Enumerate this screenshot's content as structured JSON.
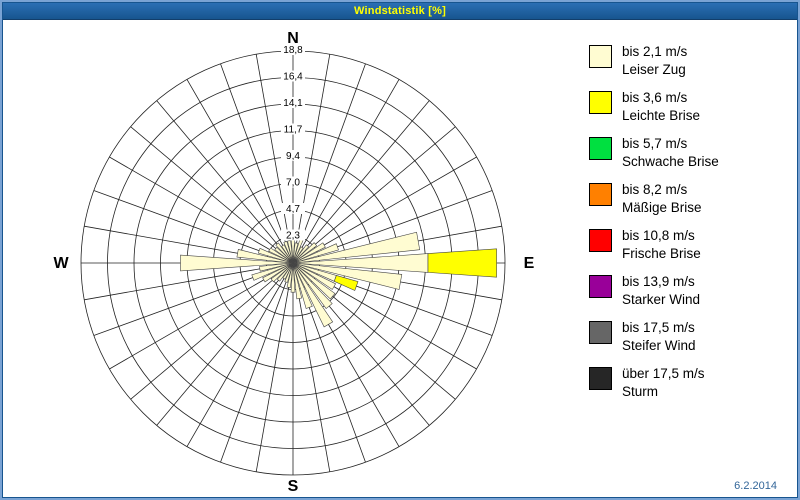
{
  "window": {
    "title": "Windstatistik [%]"
  },
  "footer": {
    "date": "6.2.2014"
  },
  "chart_data": {
    "type": "bar",
    "polar": true,
    "title": "Windstatistik [%]",
    "units": "%",
    "max_value": 18.8,
    "ring_labels": [
      "2,3",
      "4,7",
      "7,0",
      "9,4",
      "11,7",
      "14,1",
      "16,4",
      "18,8"
    ],
    "sector_deg": 10,
    "petal_half_deg": 4,
    "grid": true,
    "legend_position": "right",
    "compass": {
      "n": "N",
      "e": "E",
      "s": "S",
      "w": "W"
    },
    "classes": [
      {
        "label": "bis 2,1 m/s",
        "name": "Leiser Zug",
        "color": "#FFFCD2"
      },
      {
        "label": "bis 3,6 m/s",
        "name": "Leichte Brise",
        "color": "#FFFF00"
      },
      {
        "label": "bis 5,7 m/s",
        "name": "Schwache Brise",
        "color": "#00E040"
      },
      {
        "label": "bis 8,2 m/s",
        "name": "Mäßige Brise",
        "color": "#FF8000"
      },
      {
        "label": "bis 10,8 m/s",
        "name": "Frische Brise",
        "color": "#FF0000"
      },
      {
        "label": "bis 13,9 m/s",
        "name": "Starker Wind",
        "color": "#990099"
      },
      {
        "label": "bis 17,5 m/s",
        "name": "Steifer Wind",
        "color": "#666666"
      },
      {
        "label": "über 17,5 m/s",
        "name": "Sturm",
        "color": "#262626"
      }
    ],
    "petals": [
      {
        "dir": 0,
        "segments": [
          {
            "cls": 0,
            "to": 2.2
          }
        ]
      },
      {
        "dir": 10,
        "segments": [
          {
            "cls": 0,
            "to": 1.8
          }
        ]
      },
      {
        "dir": 20,
        "segments": [
          {
            "cls": 0,
            "to": 2.4
          }
        ]
      },
      {
        "dir": 30,
        "segments": [
          {
            "cls": 0,
            "to": 1.6
          }
        ]
      },
      {
        "dir": 40,
        "segments": [
          {
            "cls": 0,
            "to": 2.0
          }
        ]
      },
      {
        "dir": 50,
        "segments": [
          {
            "cls": 0,
            "to": 2.6
          }
        ]
      },
      {
        "dir": 60,
        "segments": [
          {
            "cls": 0,
            "to": 3.2
          }
        ]
      },
      {
        "dir": 70,
        "segments": [
          {
            "cls": 0,
            "to": 4.2
          }
        ]
      },
      {
        "dir": 80,
        "segments": [
          {
            "cls": 0,
            "to": 11.3
          }
        ]
      },
      {
        "dir": 90,
        "segments": [
          {
            "cls": 0,
            "to": 12.0
          },
          {
            "cls": 1,
            "to": 18.1
          }
        ]
      },
      {
        "dir": 100,
        "segments": [
          {
            "cls": 0,
            "to": 9.7
          }
        ]
      },
      {
        "dir": 110,
        "segments": [
          {
            "cls": 0,
            "to": 4.0
          },
          {
            "cls": 1,
            "to": 6.0
          }
        ]
      },
      {
        "dir": 120,
        "segments": [
          {
            "cls": 0,
            "to": 4.2
          }
        ]
      },
      {
        "dir": 130,
        "segments": [
          {
            "cls": 0,
            "to": 4.6
          }
        ]
      },
      {
        "dir": 140,
        "segments": [
          {
            "cls": 0,
            "to": 5.0
          }
        ]
      },
      {
        "dir": 150,
        "segments": [
          {
            "cls": 0,
            "to": 6.3
          }
        ]
      },
      {
        "dir": 160,
        "segments": [
          {
            "cls": 0,
            "to": 4.2
          }
        ]
      },
      {
        "dir": 170,
        "segments": [
          {
            "cls": 0,
            "to": 3.2
          }
        ]
      },
      {
        "dir": 180,
        "segments": [
          {
            "cls": 0,
            "to": 2.6
          }
        ]
      },
      {
        "dir": 190,
        "segments": [
          {
            "cls": 0,
            "to": 2.2
          }
        ]
      },
      {
        "dir": 200,
        "segments": [
          {
            "cls": 0,
            "to": 1.8
          }
        ]
      },
      {
        "dir": 210,
        "segments": [
          {
            "cls": 0,
            "to": 1.6
          }
        ]
      },
      {
        "dir": 220,
        "segments": [
          {
            "cls": 0,
            "to": 2.0
          }
        ]
      },
      {
        "dir": 230,
        "segments": [
          {
            "cls": 0,
            "to": 2.4
          }
        ]
      },
      {
        "dir": 240,
        "segments": [
          {
            "cls": 0,
            "to": 3.0
          }
        ]
      },
      {
        "dir": 250,
        "segments": [
          {
            "cls": 0,
            "to": 3.8
          }
        ]
      },
      {
        "dir": 260,
        "segments": [
          {
            "cls": 0,
            "to": 3.0
          }
        ]
      },
      {
        "dir": 270,
        "segments": [
          {
            "cls": 0,
            "to": 10.0
          }
        ]
      },
      {
        "dir": 280,
        "segments": [
          {
            "cls": 0,
            "to": 5.0
          }
        ]
      },
      {
        "dir": 290,
        "segments": [
          {
            "cls": 0,
            "to": 3.2
          }
        ]
      },
      {
        "dir": 300,
        "segments": [
          {
            "cls": 0,
            "to": 2.4
          }
        ]
      },
      {
        "dir": 310,
        "segments": [
          {
            "cls": 0,
            "to": 2.0
          }
        ]
      },
      {
        "dir": 320,
        "segments": [
          {
            "cls": 0,
            "to": 2.2
          }
        ]
      },
      {
        "dir": 330,
        "segments": [
          {
            "cls": 0,
            "to": 1.8
          }
        ]
      },
      {
        "dir": 340,
        "segments": [
          {
            "cls": 0,
            "to": 2.0
          }
        ]
      },
      {
        "dir": 350,
        "segments": [
          {
            "cls": 0,
            "to": 2.0
          }
        ]
      }
    ]
  }
}
